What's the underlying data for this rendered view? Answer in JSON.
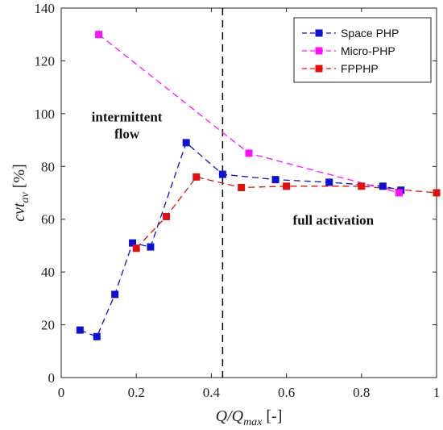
{
  "chart_data": {
    "type": "line",
    "xlabel": {
      "main": "Q/Q",
      "sub": "max",
      "unit": " [-]"
    },
    "ylabel": {
      "main": "cvt",
      "sub": "av",
      "unit": " [%]"
    },
    "xlim": [
      0,
      1
    ],
    "ylim": [
      0,
      140
    ],
    "xticks": [
      "0",
      "0.2",
      "0.4",
      "0.6",
      "0.8",
      "1"
    ],
    "yticks": [
      "0",
      "20",
      "40",
      "60",
      "80",
      "100",
      "120",
      "140"
    ],
    "grid": false,
    "legend_position": "top-right",
    "vertical_line": {
      "x": 0.43,
      "style": "dashed",
      "color": "#000000"
    },
    "annotations": [
      {
        "lines": [
          "intermittent",
          "flow"
        ],
        "x": 0.175,
        "y": 97
      },
      {
        "lines": [
          "full activation"
        ],
        "x": 0.725,
        "y": 58
      }
    ],
    "series": [
      {
        "name": "Space PHP",
        "color": "#1010d0",
        "x": [
          0.05,
          0.095,
          0.143,
          0.19,
          0.238,
          0.333,
          0.43,
          0.571,
          0.714,
          0.857,
          0.905
        ],
        "y": [
          18,
          15.5,
          31.5,
          51,
          49.5,
          89,
          77,
          75,
          74,
          72.5,
          71
        ]
      },
      {
        "name": "Micro-PHP",
        "color": "#ff10ff",
        "x": [
          0.1,
          0.5,
          0.9
        ],
        "y": [
          130,
          85,
          70
        ]
      },
      {
        "name": "FPPHP",
        "color": "#e01010",
        "x": [
          0.2,
          0.28,
          0.36,
          0.48,
          0.6,
          0.8,
          1.0
        ],
        "y": [
          49,
          61,
          76,
          72,
          72.5,
          72.5,
          70
        ]
      }
    ]
  }
}
